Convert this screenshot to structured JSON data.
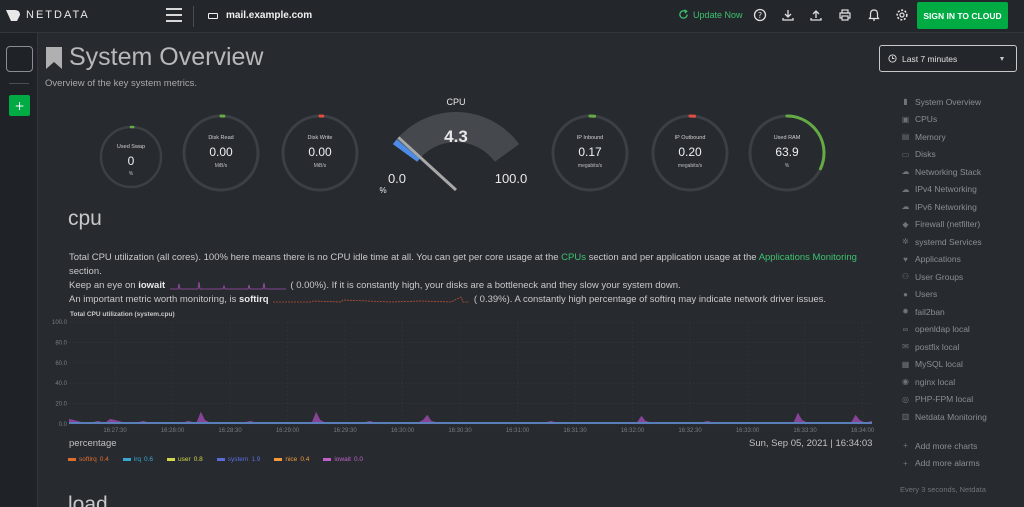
{
  "header": {
    "logo_text": "NETDATA",
    "host": "mail.example.com",
    "update_label": "Update Now",
    "signin_label": "SIGN IN TO CLOUD",
    "icons": [
      "help-icon",
      "download-icon",
      "upload-icon",
      "print-icon",
      "notifications-icon",
      "settings-icon"
    ]
  },
  "left_rail": {
    "add_label": "+"
  },
  "page": {
    "title": "System Overview",
    "subtitle": "Overview of the key system metrics."
  },
  "gauges": [
    {
      "label": "Used Swap",
      "value": "0",
      "units": "%",
      "fill": 0,
      "color": "#66aa44"
    },
    {
      "label": "Disk Read",
      "value": "0.00",
      "units": "MiB/s",
      "fill": 0,
      "color": "#66aa44"
    },
    {
      "label": "Disk Write",
      "value": "0.00",
      "units": "MiB/s",
      "fill": 0,
      "color": "#e24d42"
    },
    {
      "label": "IP Inbound",
      "value": "0.17",
      "units": "megabits/s",
      "fill": 0.04,
      "color": "#66aa44"
    },
    {
      "label": "IP Outbound",
      "value": "0.20",
      "units": "megabits/s",
      "fill": 0.04,
      "color": "#e24d42"
    },
    {
      "label": "Used RAM",
      "value": "63.9",
      "units": "%",
      "fill": 0.639,
      "color": "#66aa44"
    }
  ],
  "cpu_gauge": {
    "label": "CPU",
    "value": "4.3",
    "min": "0.0",
    "max": "100.0",
    "units": "%",
    "level": 0.043,
    "color": "#4c8ce6"
  },
  "cpu_section": {
    "title": "cpu",
    "desc_1": "Total CPU utilization (all cores). 100% here means there is no CPU idle time at all. You can get per core usage at the ",
    "link_cpus": "CPUs",
    "desc_2": " section and per application usage at the ",
    "link_apps": "Applications Monitoring",
    "desc_3": " section.",
    "keep_eye": "Keep an eye on ",
    "iowait_word": "iowait",
    "iowait_paren_open": "(",
    "iowait_value": "0.00%). If it is constantly high, your disks are a bottleneck and they slow your system down.",
    "softirq_intro": "An important metric worth monitoring, is ",
    "softirq_word": "softirq",
    "softirq_paren_open": "(",
    "softirq_value": "0.39%). A constantly high percentage of softirq may indicate network driver issues."
  },
  "chart_data": {
    "type": "area",
    "title": "Total CPU utilization (system.cpu)",
    "xlabel": "",
    "ylabel": "percentage",
    "date": "Sun, Sep 05, 2021 | 16:34:03",
    "ylim": [
      0,
      100
    ],
    "y_ticks": [
      "100.0",
      "80.0",
      "60.0",
      "40.0",
      "20.0",
      "0.0"
    ],
    "x_ticks": [
      "16:27:30",
      "16:28:00",
      "16:28:30",
      "16:29:00",
      "16:29:30",
      "16:30:00",
      "16:30:30",
      "16:31:00",
      "16:31:30",
      "16:32:00",
      "16:32:30",
      "16:33:00",
      "16:33:30",
      "16:34:00"
    ],
    "series": [
      {
        "name": "softirq",
        "value": "0.4",
        "color": "#e06c2b"
      },
      {
        "name": "irq",
        "value": "0.6",
        "color": "#3aa7d0"
      },
      {
        "name": "user",
        "value": "0.8",
        "color": "#d4d64c"
      },
      {
        "name": "system",
        "value": "1.9",
        "color": "#5a6bd8"
      },
      {
        "name": "nice",
        "value": "0.4",
        "color": "#f49a3a"
      },
      {
        "name": "iowait",
        "value": "0.0",
        "color": "#c060c8"
      }
    ],
    "total": [
      5,
      4,
      3,
      2,
      2,
      2,
      2,
      3,
      2,
      2,
      5,
      4,
      3,
      2,
      2,
      2,
      2,
      2,
      3,
      2,
      2,
      2,
      2,
      2,
      2,
      2,
      2,
      2,
      2,
      3,
      2,
      2,
      12,
      4,
      2,
      2,
      2,
      2,
      2,
      2,
      2,
      2,
      2,
      2,
      3,
      2,
      2,
      2,
      2,
      2,
      2,
      2,
      2,
      2,
      2,
      2,
      2,
      2,
      2,
      2,
      12,
      4,
      2,
      2,
      2,
      2,
      2,
      2,
      2,
      2,
      2,
      2,
      2,
      3,
      2,
      2,
      2,
      2,
      2,
      2,
      2,
      2,
      2,
      2,
      2,
      2,
      4,
      9,
      3,
      2,
      2,
      2,
      2,
      2,
      2,
      2,
      2,
      2,
      2,
      2,
      2,
      2,
      2,
      2,
      2,
      2,
      2,
      2,
      2,
      2,
      2,
      2,
      2,
      2,
      2,
      2,
      2,
      3,
      2,
      2,
      2,
      2,
      2,
      2,
      2,
      2,
      2,
      2,
      2,
      2,
      2,
      2,
      2,
      2,
      2,
      2,
      2,
      2,
      2,
      8,
      3,
      2,
      2,
      2,
      2,
      2,
      2,
      2,
      2,
      2,
      2,
      2,
      2,
      2,
      2,
      3,
      2,
      2,
      2,
      2,
      2,
      2,
      2,
      2,
      2,
      2,
      2,
      2,
      2,
      2,
      2,
      2,
      2,
      2,
      2,
      2,
      2,
      11,
      4,
      2,
      2,
      2,
      2,
      2,
      2,
      2,
      2,
      2,
      2,
      2,
      2,
      9,
      4,
      2,
      2,
      3
    ]
  },
  "next_section": {
    "title": "load"
  },
  "time_picker": {
    "label": "Last 7 minutes"
  },
  "nav": {
    "items": [
      {
        "label": "System Overview",
        "icon": "bookmark-icon"
      },
      {
        "label": "CPUs",
        "icon": "cpu-icon"
      },
      {
        "label": "Memory",
        "icon": "memory-icon"
      },
      {
        "label": "Disks",
        "icon": "disk-icon"
      },
      {
        "label": "Networking Stack",
        "icon": "cloud-icon"
      },
      {
        "label": "IPv4 Networking",
        "icon": "cloud-icon"
      },
      {
        "label": "IPv6 Networking",
        "icon": "cloud-icon"
      },
      {
        "label": "Firewall (netfilter)",
        "icon": "shield-icon"
      },
      {
        "label": "systemd Services",
        "icon": "gears-icon"
      },
      {
        "label": "Applications",
        "icon": "heartbeat-icon"
      },
      {
        "label": "User Groups",
        "icon": "users-icon"
      },
      {
        "label": "Users",
        "icon": "user-icon"
      },
      {
        "label": "fail2ban",
        "icon": "gear-icon"
      },
      {
        "label": "openldap local",
        "icon": "link-icon"
      },
      {
        "label": "postfix local",
        "icon": "envelope-icon"
      },
      {
        "label": "MySQL local",
        "icon": "database-icon"
      },
      {
        "label": "nginx local",
        "icon": "globe-icon"
      },
      {
        "label": "PHP-FPM local",
        "icon": "eye-icon"
      },
      {
        "label": "Netdata Monitoring",
        "icon": "chart-icon"
      }
    ],
    "add_charts": "Add more charts",
    "add_alarms": "Add more alarms"
  },
  "footer": {
    "note": "Every 3 seconds, Netdata"
  }
}
